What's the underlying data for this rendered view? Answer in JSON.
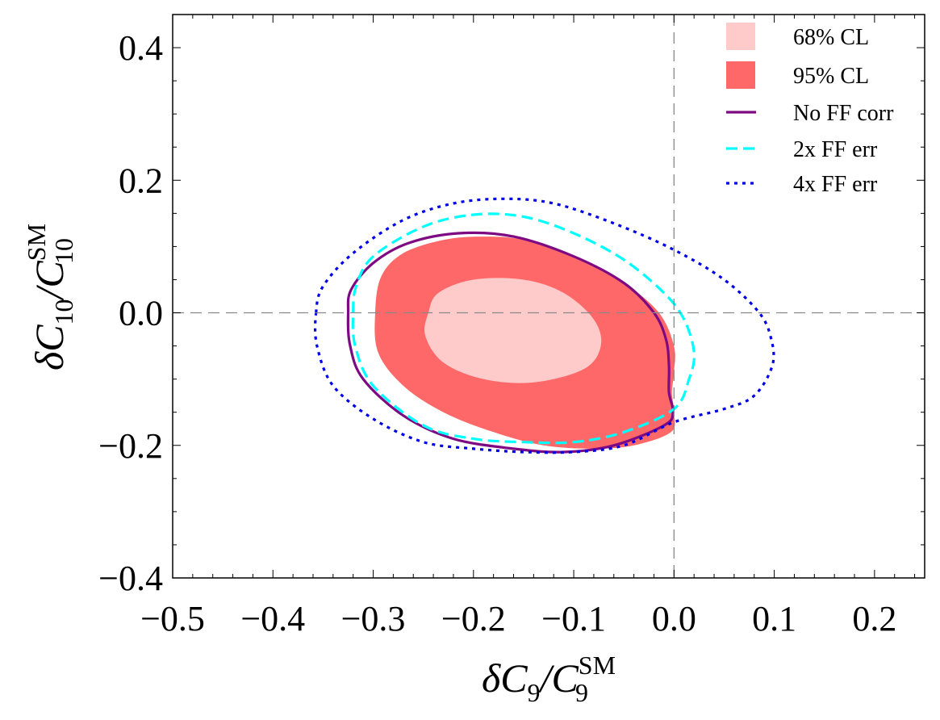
{
  "colors": {
    "cl68": "#ffcaca",
    "cl95": "#ff6868",
    "no_ff_corr": "#7d0a82",
    "ff_err_2x": "#00ffff",
    "ff_err_4x": "#0000e6",
    "refline": "#888888"
  },
  "axes": {
    "xlabel": {
      "main": "δC",
      "sub1": "9",
      "slash": "/C",
      "sup": "SM",
      "sub2": "9"
    },
    "ylabel": {
      "main": "δC",
      "sub1": "10",
      "slash": "/C",
      "sup": "SM",
      "sub2": "10"
    }
  },
  "chart_data": {
    "type": "contour",
    "xlim": [
      -0.5,
      0.25
    ],
    "ylim": [
      -0.4,
      0.45
    ],
    "xticks": [
      -0.5,
      -0.4,
      -0.3,
      -0.2,
      -0.1,
      0.0,
      0.1,
      0.2
    ],
    "xtick_labels": [
      "−0.5",
      "−0.4",
      "−0.3",
      "−0.2",
      "−0.1",
      "0.0",
      "0.1",
      "0.2"
    ],
    "yticks": [
      -0.4,
      -0.2,
      0.0,
      0.2,
      0.4
    ],
    "ytick_labels": [
      "−0.4",
      "−0.2",
      "0.0",
      "0.2",
      "0.4"
    ],
    "reference_lines": {
      "x": 0.0,
      "y": 0.0
    },
    "legend_position": "top-right",
    "legend": [
      {
        "key": "cl68",
        "label": "68% CL",
        "style": "fill"
      },
      {
        "key": "cl95",
        "label": "95% CL",
        "style": "fill"
      },
      {
        "key": "no_ff_corr",
        "label": "No FF corr",
        "style": "solid"
      },
      {
        "key": "ff_err_2x",
        "label": "2x FF err",
        "style": "dashed"
      },
      {
        "key": "ff_err_4x",
        "label": "4x FF err",
        "style": "dotted"
      }
    ],
    "series": [
      {
        "name": "95% CL",
        "key": "cl95",
        "kind": "fill",
        "points": [
          [
            -0.298,
            0.0
          ],
          [
            -0.292,
            0.055
          ],
          [
            -0.27,
            0.09
          ],
          [
            -0.23,
            0.11
          ],
          [
            -0.19,
            0.115
          ],
          [
            -0.15,
            0.11
          ],
          [
            -0.1,
            0.085
          ],
          [
            -0.05,
            0.045
          ],
          [
            -0.015,
            0.0
          ],
          [
            0.0,
            -0.05
          ],
          [
            0.0,
            -0.09
          ],
          [
            -0.002,
            -0.12
          ],
          [
            0.0,
            -0.15
          ],
          [
            -0.003,
            -0.18
          ],
          [
            -0.04,
            -0.2
          ],
          [
            -0.08,
            -0.205
          ],
          [
            -0.13,
            -0.2
          ],
          [
            -0.18,
            -0.18
          ],
          [
            -0.23,
            -0.15
          ],
          [
            -0.27,
            -0.11
          ],
          [
            -0.295,
            -0.06
          ]
        ]
      },
      {
        "name": "68% CL",
        "key": "cl68",
        "kind": "fill",
        "points": [
          [
            -0.245,
            0.0
          ],
          [
            -0.235,
            0.03
          ],
          [
            -0.2,
            0.05
          ],
          [
            -0.15,
            0.05
          ],
          [
            -0.11,
            0.03
          ],
          [
            -0.08,
            -0.01
          ],
          [
            -0.073,
            -0.05
          ],
          [
            -0.09,
            -0.085
          ],
          [
            -0.14,
            -0.105
          ],
          [
            -0.19,
            -0.1
          ],
          [
            -0.23,
            -0.075
          ],
          [
            -0.248,
            -0.035
          ]
        ]
      },
      {
        "name": "No FF corr",
        "key": "no_ff_corr",
        "kind": "solid",
        "points": [
          [
            -0.325,
            0.0
          ],
          [
            -0.322,
            0.035
          ],
          [
            -0.3,
            0.075
          ],
          [
            -0.265,
            0.105
          ],
          [
            -0.215,
            0.12
          ],
          [
            -0.16,
            0.115
          ],
          [
            -0.1,
            0.085
          ],
          [
            -0.05,
            0.045
          ],
          [
            -0.02,
            0.0
          ],
          [
            -0.008,
            -0.04
          ],
          [
            -0.005,
            -0.08
          ],
          [
            -0.005,
            -0.12
          ],
          [
            -0.001,
            -0.15
          ],
          [
            -0.01,
            -0.17
          ],
          [
            -0.06,
            -0.2
          ],
          [
            -0.11,
            -0.21
          ],
          [
            -0.16,
            -0.205
          ],
          [
            -0.22,
            -0.19
          ],
          [
            -0.27,
            -0.155
          ],
          [
            -0.31,
            -0.1
          ],
          [
            -0.323,
            -0.05
          ]
        ]
      },
      {
        "name": "2x FF err",
        "key": "ff_err_2x",
        "kind": "dashed",
        "points": [
          [
            -0.32,
            0.0
          ],
          [
            -0.317,
            0.04
          ],
          [
            -0.3,
            0.085
          ],
          [
            -0.25,
            0.13
          ],
          [
            -0.2,
            0.148
          ],
          [
            -0.15,
            0.145
          ],
          [
            -0.1,
            0.12
          ],
          [
            -0.05,
            0.08
          ],
          [
            -0.01,
            0.03
          ],
          [
            0.01,
            -0.01
          ],
          [
            0.02,
            -0.06
          ],
          [
            0.015,
            -0.1
          ],
          [
            0.0,
            -0.145
          ],
          [
            -0.05,
            -0.18
          ],
          [
            -0.1,
            -0.195
          ],
          [
            -0.15,
            -0.195
          ],
          [
            -0.2,
            -0.19
          ],
          [
            -0.25,
            -0.17
          ],
          [
            -0.3,
            -0.11
          ],
          [
            -0.318,
            -0.05
          ]
        ]
      },
      {
        "name": "4x FF err",
        "key": "ff_err_4x",
        "kind": "dotted",
        "points": [
          [
            -0.357,
            0.0
          ],
          [
            -0.35,
            0.04
          ],
          [
            -0.32,
            0.09
          ],
          [
            -0.27,
            0.14
          ],
          [
            -0.22,
            0.165
          ],
          [
            -0.17,
            0.172
          ],
          [
            -0.12,
            0.165
          ],
          [
            -0.06,
            0.135
          ],
          [
            0.0,
            0.095
          ],
          [
            0.05,
            0.05
          ],
          [
            0.085,
            0.0
          ],
          [
            0.097,
            -0.04
          ],
          [
            0.098,
            -0.08
          ],
          [
            0.08,
            -0.125
          ],
          [
            0.05,
            -0.145
          ],
          [
            0.0,
            -0.165
          ],
          [
            -0.05,
            -0.2
          ],
          [
            -0.1,
            -0.21
          ],
          [
            -0.15,
            -0.21
          ],
          [
            -0.2,
            -0.205
          ],
          [
            -0.25,
            -0.195
          ],
          [
            -0.3,
            -0.16
          ],
          [
            -0.34,
            -0.11
          ],
          [
            -0.356,
            -0.05
          ]
        ]
      }
    ]
  }
}
